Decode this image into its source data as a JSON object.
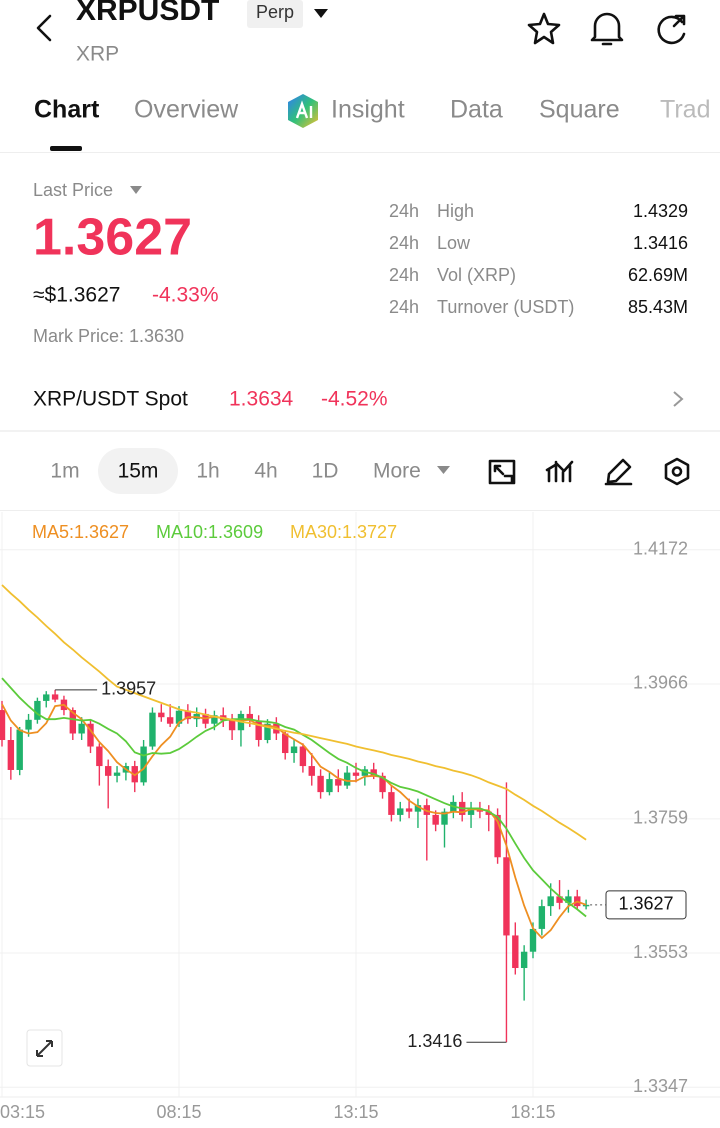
{
  "header": {
    "title": "XRPUSDT",
    "badge": "Perp",
    "subtitle": "XRP"
  },
  "tabs": [
    "Chart",
    "Overview",
    "Insight",
    "Data",
    "Square",
    "Trad"
  ],
  "price": {
    "label": "Last Price",
    "value": "1.3627",
    "usd": "≈$1.3627",
    "change": "-4.33%",
    "mark": "Mark Price: 1.3630"
  },
  "stats": [
    [
      "24h",
      "High",
      "1.4329"
    ],
    [
      "24h",
      "Low",
      "1.3416"
    ],
    [
      "24h",
      "Vol (XRP)",
      "62.69M"
    ],
    [
      "24h",
      "Turnover (USDT)",
      "85.43M"
    ]
  ],
  "spot": {
    "name": "XRP/USDT Spot",
    "price": "1.3634",
    "change": "-4.52%"
  },
  "intervals": [
    "1m",
    "15m",
    "1h",
    "4h",
    "1D",
    "More"
  ],
  "chart_data": {
    "type": "candlestick",
    "categories": [
      "03:15",
      null,
      null,
      null,
      null,
      null,
      null,
      null,
      null,
      null,
      null,
      null,
      null,
      null,
      null,
      null,
      null,
      null,
      null,
      null,
      "08:15",
      null,
      null,
      null,
      null,
      null,
      null,
      null,
      null,
      null,
      null,
      null,
      null,
      null,
      null,
      null,
      null,
      null,
      null,
      null,
      "13:15",
      null,
      null,
      null,
      null,
      null,
      null,
      null,
      null,
      null,
      null,
      null,
      null,
      null,
      null,
      null,
      null,
      null,
      null,
      null,
      "18:15",
      null,
      null,
      null,
      null,
      null,
      null
    ],
    "open": [
      1.3926,
      1.388,
      1.3834,
      1.3896,
      1.3911,
      1.394,
      1.395,
      1.3942,
      1.3926,
      1.389,
      1.3905,
      1.387,
      1.384,
      1.3825,
      1.383,
      1.384,
      1.3815,
      1.387,
      1.3922,
      1.3915,
      1.3905,
      1.3925,
      1.3912,
      1.392,
      1.3905,
      1.3918,
      1.391,
      1.3895,
      1.392,
      1.391,
      1.388,
      1.3905,
      1.389,
      1.386,
      1.387,
      1.384,
      1.3825,
      1.38,
      1.382,
      1.381,
      1.383,
      1.3825,
      1.3835,
      1.3825,
      1.38,
      1.3765,
      1.3775,
      1.377,
      1.378,
      1.3765,
      1.375,
      1.377,
      1.3785,
      1.3765,
      1.3775,
      1.377,
      1.3765,
      1.37,
      1.358,
      1.353,
      1.3555,
      1.359,
      1.3625,
      1.364,
      1.363,
      1.364,
      1.3625
    ],
    "high": [
      1.394,
      1.39,
      1.39,
      1.392,
      1.3945,
      1.3955,
      1.3957,
      1.3948,
      1.393,
      1.3915,
      1.3912,
      1.3875,
      1.385,
      1.384,
      1.3845,
      1.3848,
      1.388,
      1.393,
      1.3935,
      1.3935,
      1.3932,
      1.3935,
      1.393,
      1.3928,
      1.3925,
      1.393,
      1.392,
      1.3925,
      1.3932,
      1.3918,
      1.3912,
      1.3915,
      1.3895,
      1.388,
      1.3875,
      1.386,
      1.3835,
      1.383,
      1.3835,
      1.384,
      1.3845,
      1.384,
      1.3845,
      1.383,
      1.381,
      1.3785,
      1.379,
      1.379,
      1.379,
      1.3772,
      1.3775,
      1.3795,
      1.38,
      1.3785,
      1.3785,
      1.378,
      1.3775,
      1.3815,
      1.36,
      1.3565,
      1.36,
      1.3635,
      1.366,
      1.3665,
      1.365,
      1.365,
      1.3635
    ],
    "low": [
      1.387,
      1.3819,
      1.3826,
      1.3885,
      1.3905,
      1.393,
      1.3938,
      1.3918,
      1.388,
      1.388,
      1.386,
      1.381,
      1.3775,
      1.3815,
      1.3818,
      1.38,
      1.381,
      1.3865,
      1.3908,
      1.39,
      1.39,
      1.3905,
      1.39,
      1.3898,
      1.3895,
      1.39,
      1.388,
      1.387,
      1.39,
      1.387,
      1.3875,
      1.388,
      1.385,
      1.3845,
      1.383,
      1.381,
      1.379,
      1.3795,
      1.38,
      1.3805,
      1.3815,
      1.381,
      1.382,
      1.379,
      1.3755,
      1.3755,
      1.376,
      1.3745,
      1.3695,
      1.374,
      1.3715,
      1.376,
      1.3755,
      1.3745,
      1.376,
      1.374,
      1.369,
      1.3416,
      1.352,
      1.348,
      1.3545,
      1.358,
      1.361,
      1.362,
      1.3615,
      1.362,
      1.362
    ],
    "close": [
      1.388,
      1.3834,
      1.3896,
      1.3911,
      1.394,
      1.395,
      1.3942,
      1.3926,
      1.389,
      1.3905,
      1.387,
      1.384,
      1.3825,
      1.383,
      1.384,
      1.3815,
      1.387,
      1.3922,
      1.3915,
      1.3905,
      1.3925,
      1.3912,
      1.392,
      1.3905,
      1.3918,
      1.391,
      1.3895,
      1.392,
      1.391,
      1.388,
      1.3905,
      1.389,
      1.386,
      1.387,
      1.384,
      1.3825,
      1.38,
      1.382,
      1.381,
      1.383,
      1.3825,
      1.3835,
      1.3825,
      1.38,
      1.3765,
      1.3775,
      1.377,
      1.378,
      1.3765,
      1.375,
      1.377,
      1.3785,
      1.3765,
      1.3775,
      1.377,
      1.3765,
      1.37,
      1.358,
      1.353,
      1.3555,
      1.359,
      1.3625,
      1.364,
      1.363,
      1.364,
      1.3625,
      1.3627
    ],
    "up_color": "#20b26c",
    "down_color": "#f0335a",
    "series": [
      {
        "name": "MA5:1.3627",
        "color": "#ee8f22",
        "values": [
          1.3935,
          1.391,
          1.3895,
          1.389,
          1.3892,
          1.3906,
          1.3932,
          1.3934,
          1.3922,
          1.3912,
          1.3895,
          1.3877,
          1.3863,
          1.3846,
          1.3835,
          1.3826,
          1.3836,
          1.3855,
          1.3872,
          1.3885,
          1.3907,
          1.3915,
          1.3915,
          1.3913,
          1.3916,
          1.3913,
          1.391,
          1.391,
          1.3911,
          1.3903,
          1.3902,
          1.39,
          1.3889,
          1.3881,
          1.3873,
          1.3857,
          1.3839,
          1.3831,
          1.3821,
          1.3817,
          1.3817,
          1.3824,
          1.3825,
          1.3823,
          1.381,
          1.38,
          1.3787,
          1.3778,
          1.3771,
          1.3768,
          1.3767,
          1.377,
          1.3769,
          1.3774,
          1.3773,
          1.3772,
          1.3755,
          1.3718,
          1.3669,
          1.3626,
          1.3591,
          1.3576,
          1.3588,
          1.3608,
          1.3625,
          1.3632,
          1.3627
        ]
      },
      {
        "name": "MA10:1.3609",
        "color": "#5ccb3c",
        "values": [
          1.3975,
          1.396,
          1.3945,
          1.3932,
          1.392,
          1.3912,
          1.3912,
          1.3914,
          1.3912,
          1.391,
          1.3911,
          1.3905,
          1.3897,
          1.389,
          1.3878,
          1.3861,
          1.3856,
          1.386,
          1.3859,
          1.386,
          1.3866,
          1.3875,
          1.3885,
          1.3894,
          1.39,
          1.391,
          1.3912,
          1.3912,
          1.3912,
          1.3909,
          1.3908,
          1.3906,
          1.39,
          1.3896,
          1.3888,
          1.388,
          1.387,
          1.386,
          1.3851,
          1.3845,
          1.3837,
          1.3831,
          1.3828,
          1.3822,
          1.3814,
          1.3808,
          1.3805,
          1.3801,
          1.3795,
          1.3789,
          1.3783,
          1.3778,
          1.3775,
          1.3775,
          1.3775,
          1.377,
          1.3762,
          1.3744,
          1.3721,
          1.3699,
          1.368,
          1.3666,
          1.3652,
          1.364,
          1.363,
          1.362,
          1.3609
        ]
      },
      {
        "name": "MA30:1.3727",
        "color": "#f0bf30",
        "values": [
          1.4118,
          1.4105,
          1.4093,
          1.408,
          1.4068,
          1.4055,
          1.4043,
          1.403,
          1.4019,
          1.4007,
          1.3996,
          1.3985,
          1.3973,
          1.3962,
          1.3957,
          1.3952,
          1.3947,
          1.3942,
          1.3937,
          1.3932,
          1.3927,
          1.3924,
          1.3922,
          1.3919,
          1.3916,
          1.3914,
          1.3911,
          1.3908,
          1.3906,
          1.3903,
          1.39,
          1.3897,
          1.3894,
          1.3891,
          1.3889,
          1.3886,
          1.3883,
          1.388,
          1.3877,
          1.3874,
          1.387,
          1.3867,
          1.3864,
          1.3861,
          1.3857,
          1.3854,
          1.3851,
          1.3847,
          1.3844,
          1.384,
          1.3837,
          1.3833,
          1.383,
          1.3826,
          1.3821,
          1.3815,
          1.381,
          1.3805,
          1.3796,
          1.3788,
          1.3779,
          1.3771,
          1.3762,
          1.3753,
          1.3745,
          1.3736,
          1.3727
        ]
      }
    ],
    "ylim": [
      1.3332,
      1.423
    ],
    "yticks": [
      1.3347,
      1.3553,
      1.3759,
      1.3966,
      1.4172
    ],
    "grid": true
  }
}
